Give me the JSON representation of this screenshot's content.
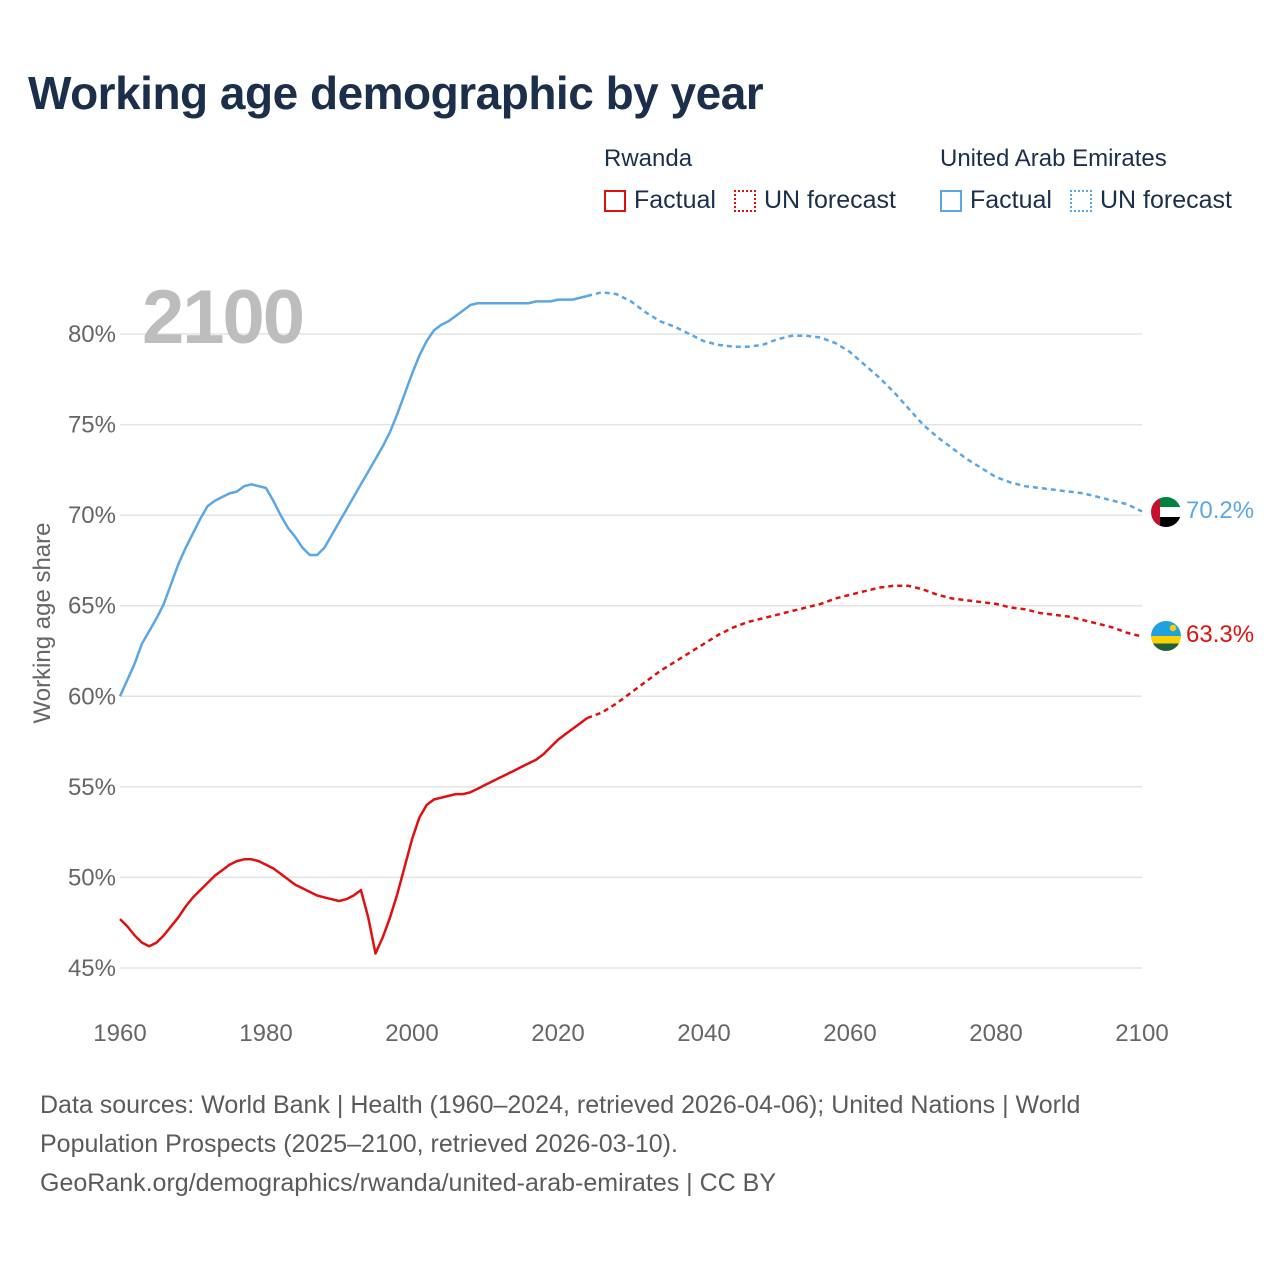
{
  "title": "Working age demographic by year",
  "legend": {
    "rwanda": {
      "country": "Rwanda",
      "factual": "Factual",
      "forecast": "UN forecast",
      "color": "#e01010"
    },
    "uae": {
      "country": "United Arab Emirates",
      "factual": "Factual",
      "forecast": "UN forecast",
      "color": "#5aa7e4"
    }
  },
  "year_watermark": "2100",
  "end_labels": {
    "uae": "70.2%",
    "rwanda": "63.3%"
  },
  "flags": {
    "uae": "uae-flag-icon",
    "rwanda": "rwanda-flag-icon"
  },
  "footer": {
    "line1": "Data sources: World Bank | Health (1960–2024, retrieved 2026-04-06); United Nations | World",
    "line2": "Population Prospects (2025–2100, retrieved 2026-03-10).",
    "line3": "GeoRank.org/demographics/rwanda/united-arab-emirates | CC BY"
  },
  "chart_data": {
    "type": "line",
    "title": "Working age demographic by year",
    "xlabel": "",
    "ylabel": "Working age share",
    "xlim": [
      1960,
      2100
    ],
    "ylim": [
      45,
      83
    ],
    "x_ticks": [
      1960,
      1980,
      2000,
      2020,
      2040,
      2060,
      2080,
      2100
    ],
    "x_tick_labels": [
      "1960",
      "1980",
      "2000",
      "2020",
      "2040",
      "2060",
      "2080",
      "2100"
    ],
    "y_ticks": [
      45,
      50,
      55,
      60,
      65,
      70,
      75,
      80
    ],
    "y_tick_labels": [
      "45%",
      "50%",
      "55%",
      "60%",
      "65%",
      "70%",
      "75%",
      "80%"
    ],
    "grid": true,
    "factual_range": [
      1960,
      2024
    ],
    "forecast_range": [
      2024,
      2100
    ],
    "series": [
      {
        "name": "United Arab Emirates",
        "color": "#5aa7e4",
        "points": [
          [
            1960,
            60.0
          ],
          [
            1962,
            61.8
          ],
          [
            1963,
            62.9
          ],
          [
            1964,
            63.6
          ],
          [
            1965,
            64.3
          ],
          [
            1966,
            65.1
          ],
          [
            1967,
            66.2
          ],
          [
            1968,
            67.3
          ],
          [
            1969,
            68.2
          ],
          [
            1970,
            69.0
          ],
          [
            1971,
            69.8
          ],
          [
            1972,
            70.5
          ],
          [
            1973,
            70.8
          ],
          [
            1974,
            71.0
          ],
          [
            1975,
            71.2
          ],
          [
            1976,
            71.3
          ],
          [
            1977,
            71.6
          ],
          [
            1978,
            71.7
          ],
          [
            1979,
            71.6
          ],
          [
            1980,
            71.5
          ],
          [
            1981,
            70.8
          ],
          [
            1982,
            70.0
          ],
          [
            1983,
            69.3
          ],
          [
            1984,
            68.8
          ],
          [
            1985,
            68.2
          ],
          [
            1986,
            67.8
          ],
          [
            1987,
            67.8
          ],
          [
            1988,
            68.2
          ],
          [
            1989,
            68.9
          ],
          [
            1990,
            69.6
          ],
          [
            1991,
            70.3
          ],
          [
            1992,
            71.0
          ],
          [
            1993,
            71.7
          ],
          [
            1994,
            72.4
          ],
          [
            1995,
            73.1
          ],
          [
            1996,
            73.8
          ],
          [
            1997,
            74.6
          ],
          [
            1998,
            75.6
          ],
          [
            1999,
            76.7
          ],
          [
            2000,
            77.8
          ],
          [
            2001,
            78.8
          ],
          [
            2002,
            79.6
          ],
          [
            2003,
            80.2
          ],
          [
            2004,
            80.5
          ],
          [
            2005,
            80.7
          ],
          [
            2006,
            81.0
          ],
          [
            2007,
            81.3
          ],
          [
            2008,
            81.6
          ],
          [
            2009,
            81.7
          ],
          [
            2010,
            81.7
          ],
          [
            2012,
            81.7
          ],
          [
            2014,
            81.7
          ],
          [
            2016,
            81.7
          ],
          [
            2017,
            81.8
          ],
          [
            2018,
            81.8
          ],
          [
            2019,
            81.8
          ],
          [
            2020,
            81.9
          ],
          [
            2022,
            81.9
          ],
          [
            2024,
            82.1
          ],
          [
            2026,
            82.3
          ],
          [
            2028,
            82.2
          ],
          [
            2030,
            81.8
          ],
          [
            2032,
            81.2
          ],
          [
            2034,
            80.7
          ],
          [
            2036,
            80.4
          ],
          [
            2038,
            80.0
          ],
          [
            2040,
            79.6
          ],
          [
            2042,
            79.4
          ],
          [
            2044,
            79.3
          ],
          [
            2046,
            79.3
          ],
          [
            2048,
            79.4
          ],
          [
            2050,
            79.7
          ],
          [
            2052,
            79.9
          ],
          [
            2054,
            79.9
          ],
          [
            2056,
            79.8
          ],
          [
            2058,
            79.5
          ],
          [
            2060,
            79.0
          ],
          [
            2062,
            78.3
          ],
          [
            2064,
            77.6
          ],
          [
            2066,
            76.8
          ],
          [
            2068,
            75.9
          ],
          [
            2070,
            75.0
          ],
          [
            2072,
            74.3
          ],
          [
            2074,
            73.7
          ],
          [
            2076,
            73.1
          ],
          [
            2078,
            72.6
          ],
          [
            2080,
            72.1
          ],
          [
            2082,
            71.8
          ],
          [
            2084,
            71.6
          ],
          [
            2086,
            71.5
          ],
          [
            2088,
            71.4
          ],
          [
            2090,
            71.3
          ],
          [
            2092,
            71.2
          ],
          [
            2094,
            71.0
          ],
          [
            2096,
            70.8
          ],
          [
            2098,
            70.6
          ],
          [
            2100,
            70.2
          ]
        ]
      },
      {
        "name": "Rwanda",
        "color": "#e01010",
        "points": [
          [
            1960,
            47.7
          ],
          [
            1961,
            47.3
          ],
          [
            1962,
            46.8
          ],
          [
            1963,
            46.4
          ],
          [
            1964,
            46.2
          ],
          [
            1965,
            46.4
          ],
          [
            1966,
            46.8
          ],
          [
            1967,
            47.3
          ],
          [
            1968,
            47.8
          ],
          [
            1969,
            48.4
          ],
          [
            1970,
            48.9
          ],
          [
            1971,
            49.3
          ],
          [
            1972,
            49.7
          ],
          [
            1973,
            50.1
          ],
          [
            1974,
            50.4
          ],
          [
            1975,
            50.7
          ],
          [
            1976,
            50.9
          ],
          [
            1977,
            51.0
          ],
          [
            1978,
            51.0
          ],
          [
            1979,
            50.9
          ],
          [
            1980,
            50.7
          ],
          [
            1981,
            50.5
          ],
          [
            1982,
            50.2
          ],
          [
            1983,
            49.9
          ],
          [
            1984,
            49.6
          ],
          [
            1985,
            49.4
          ],
          [
            1986,
            49.2
          ],
          [
            1987,
            49.0
          ],
          [
            1988,
            48.9
          ],
          [
            1989,
            48.8
          ],
          [
            1990,
            48.7
          ],
          [
            1991,
            48.8
          ],
          [
            1992,
            49.0
          ],
          [
            1993,
            49.3
          ],
          [
            1994,
            47.8
          ],
          [
            1995,
            45.8
          ],
          [
            1996,
            46.7
          ],
          [
            1997,
            47.8
          ],
          [
            1998,
            49.1
          ],
          [
            1999,
            50.6
          ],
          [
            2000,
            52.1
          ],
          [
            2001,
            53.3
          ],
          [
            2002,
            54.0
          ],
          [
            2003,
            54.3
          ],
          [
            2004,
            54.4
          ],
          [
            2005,
            54.5
          ],
          [
            2006,
            54.6
          ],
          [
            2007,
            54.6
          ],
          [
            2008,
            54.7
          ],
          [
            2009,
            54.9
          ],
          [
            2010,
            55.1
          ],
          [
            2011,
            55.3
          ],
          [
            2012,
            55.5
          ],
          [
            2013,
            55.7
          ],
          [
            2014,
            55.9
          ],
          [
            2015,
            56.1
          ],
          [
            2016,
            56.3
          ],
          [
            2017,
            56.5
          ],
          [
            2018,
            56.8
          ],
          [
            2019,
            57.2
          ],
          [
            2020,
            57.6
          ],
          [
            2021,
            57.9
          ],
          [
            2022,
            58.2
          ],
          [
            2023,
            58.5
          ],
          [
            2024,
            58.8
          ],
          [
            2026,
            59.1
          ],
          [
            2028,
            59.6
          ],
          [
            2030,
            60.2
          ],
          [
            2032,
            60.8
          ],
          [
            2034,
            61.4
          ],
          [
            2036,
            61.9
          ],
          [
            2038,
            62.4
          ],
          [
            2040,
            62.9
          ],
          [
            2042,
            63.4
          ],
          [
            2044,
            63.8
          ],
          [
            2046,
            64.1
          ],
          [
            2048,
            64.3
          ],
          [
            2050,
            64.5
          ],
          [
            2052,
            64.7
          ],
          [
            2054,
            64.9
          ],
          [
            2056,
            65.1
          ],
          [
            2058,
            65.4
          ],
          [
            2060,
            65.6
          ],
          [
            2062,
            65.8
          ],
          [
            2064,
            66.0
          ],
          [
            2066,
            66.1
          ],
          [
            2068,
            66.1
          ],
          [
            2070,
            65.9
          ],
          [
            2072,
            65.6
          ],
          [
            2074,
            65.4
          ],
          [
            2076,
            65.3
          ],
          [
            2078,
            65.2
          ],
          [
            2080,
            65.1
          ],
          [
            2082,
            64.9
          ],
          [
            2084,
            64.8
          ],
          [
            2086,
            64.6
          ],
          [
            2088,
            64.5
          ],
          [
            2090,
            64.4
          ],
          [
            2092,
            64.2
          ],
          [
            2094,
            64.0
          ],
          [
            2096,
            63.8
          ],
          [
            2098,
            63.5
          ],
          [
            2100,
            63.3
          ]
        ]
      }
    ]
  }
}
